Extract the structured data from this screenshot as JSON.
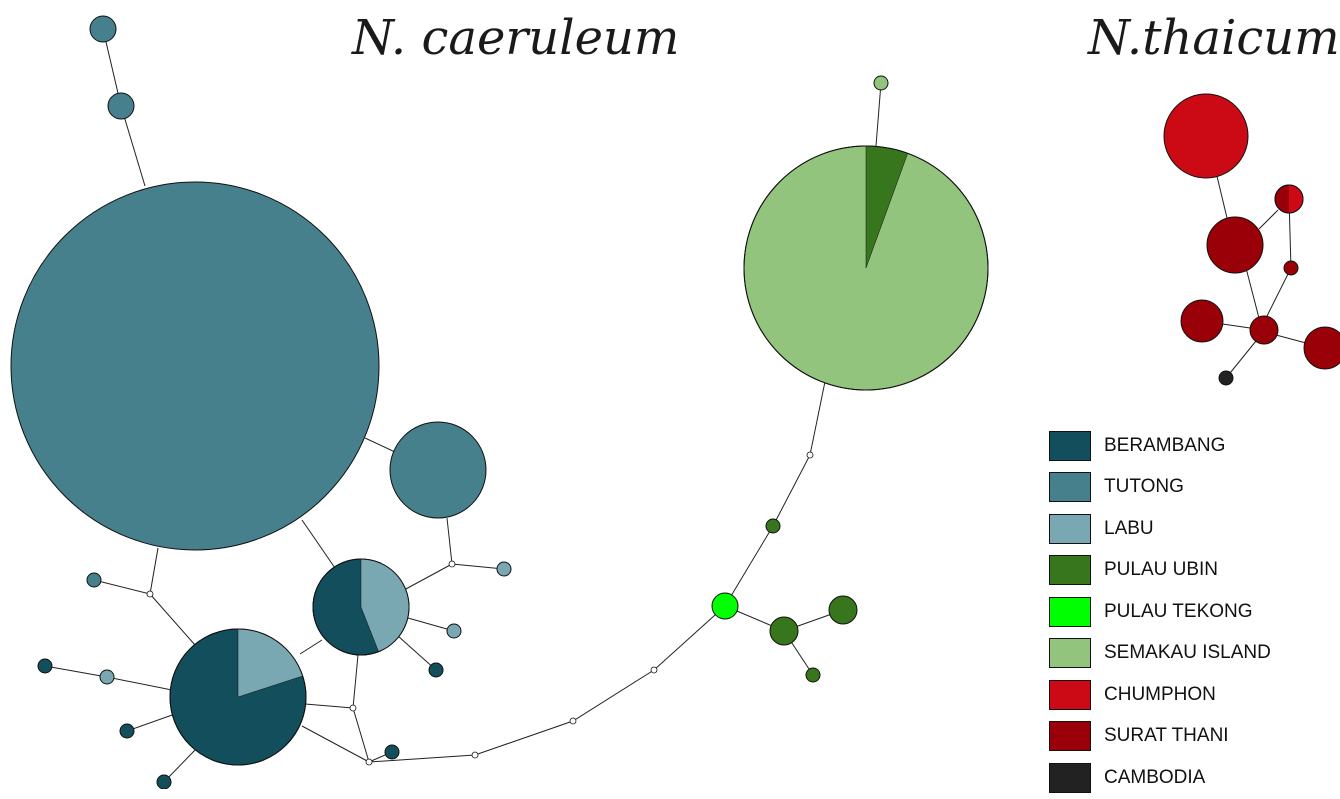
{
  "titles": {
    "left": "N. caeruleum",
    "right": "N.thaicum"
  },
  "legend": [
    {
      "label": "BERAMBANG",
      "color": "#124e5c"
    },
    {
      "label": "TUTONG",
      "color": "#46808c"
    },
    {
      "label": "LABU",
      "color": "#7aa8b2"
    },
    {
      "label": "PULAU UBIN",
      "color": "#38761d"
    },
    {
      "label": "PULAU TEKONG",
      "color": "#00ff00"
    },
    {
      "label": "SEMAKAU ISLAND",
      "color": "#93c47d"
    },
    {
      "label": "CHUMPHON",
      "color": "#cc0a16"
    },
    {
      "label": "SURAT THANI",
      "color": "#990008"
    },
    {
      "label": "CAMBODIA",
      "color": "#222222"
    }
  ]
}
